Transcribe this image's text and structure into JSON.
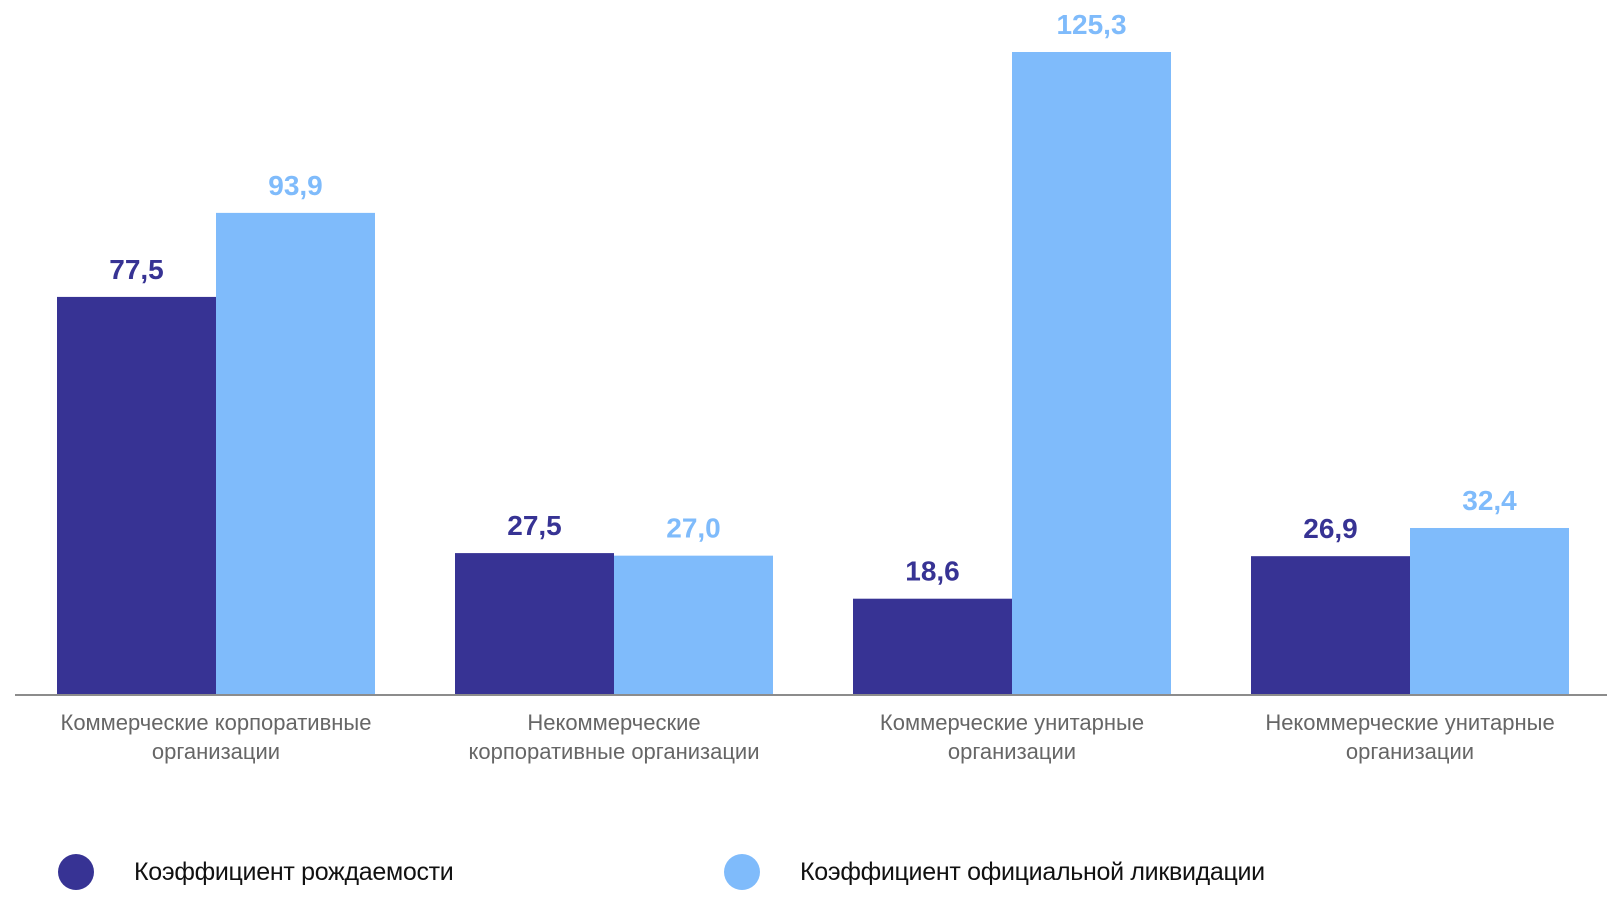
{
  "chart_data": {
    "type": "bar",
    "categories": [
      [
        "Коммерческие корпоративные",
        "организации"
      ],
      [
        "Некоммерческие",
        "корпоративные организации"
      ],
      [
        "Коммерческие унитарные",
        "организации"
      ],
      [
        "Некоммерческие унитарные",
        "организации"
      ]
    ],
    "series": [
      {
        "name": "Коэффициент рождаемости",
        "color": "#373394",
        "values": [
          77.5,
          27.5,
          18.6,
          26.9
        ],
        "labels": [
          "77,5",
          "27,5",
          "18,6",
          "26,9"
        ]
      },
      {
        "name": "Коэффициент официальной ликвидации",
        "color": "#7fbbfb",
        "values": [
          93.9,
          27.0,
          125.3,
          32.4
        ],
        "labels": [
          "93,9",
          "27,0",
          "125,3",
          "32,4"
        ]
      }
    ],
    "title": "",
    "xlabel": "",
    "ylabel": "",
    "ylim": [
      0,
      125.3
    ],
    "grid": false,
    "legend_position": "bottom"
  },
  "colors": {
    "axis": "#8c8c8c",
    "category_text": "#666666"
  }
}
